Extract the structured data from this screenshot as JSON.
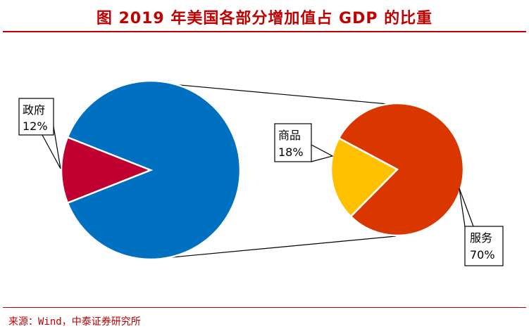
{
  "title": "图 2019 年美国各部分增加值占 GDP 的比重",
  "source": "来源：Wind，中泰证券研究所",
  "colors": {
    "accent": "#c00000",
    "private": "#0070c0",
    "government": "#c00030",
    "services": "#d93600",
    "goods": "#ffc000"
  },
  "chart_data": [
    {
      "type": "pie",
      "slices": [
        {
          "label": "政府",
          "value": 12,
          "value_label": "12%",
          "color": "#c00030"
        },
        {
          "label": "",
          "value": 88,
          "value_label": "",
          "color": "#0070c0"
        }
      ]
    },
    {
      "type": "pie",
      "slices": [
        {
          "label": "商品",
          "value": 18,
          "value_label": "18%",
          "color": "#ffc000"
        },
        {
          "label": "服务",
          "value": 70,
          "value_label": "70%",
          "color": "#d93600"
        }
      ]
    }
  ]
}
